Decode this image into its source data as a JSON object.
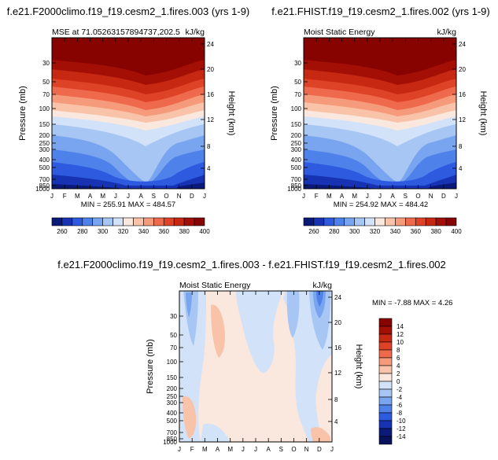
{
  "chart_data": [
    {
      "type": "heatmap",
      "title": "f.e21.F2000climo.f19_f19.cesm2_1.fires.003 (yrs 1-9)",
      "subtitle_left": "MSE at 71.05263157894737,202.5",
      "subtitle_right": "kJ/kg",
      "ylabel": "Pressure (mb)",
      "ylabel_right": "Height (km)",
      "x_ticks": [
        "J",
        "F",
        "M",
        "A",
        "M",
        "J",
        "J",
        "A",
        "S",
        "O",
        "N",
        "D",
        "J"
      ],
      "y_ticks": [
        "30",
        "50",
        "70",
        "100",
        "150",
        "200",
        "250",
        "300",
        "400",
        "500",
        "700",
        "850",
        "1000"
      ],
      "y_ticks_right": [
        "24",
        "20",
        "16",
        "12",
        "8",
        "4"
      ],
      "stats": "MIN = 255.91  MAX = 484.57",
      "colorbar_labels": [
        "260",
        "280",
        "300",
        "320",
        "340",
        "360",
        "380",
        "400"
      ],
      "colorbar_colors": [
        "#0a1a78",
        "#1733b4",
        "#2e5ae0",
        "#4f81ea",
        "#79a5f0",
        "#a7c6f4",
        "#d2e2f9",
        "#fae7dd",
        "#f8c3a8",
        "#f59a7a",
        "#ef6a4c",
        "#de4227",
        "#c62812",
        "#a30f05",
        "#870300"
      ],
      "value_range": [
        255.91,
        484.57
      ]
    },
    {
      "type": "heatmap",
      "title": "f.e21.FHIST.f19_f19.cesm2_1.fires.002 (yrs 1-9)",
      "subtitle_left": "Moist Static Energy",
      "subtitle_right": "kJ/kg",
      "ylabel": "Pressure (mb)",
      "ylabel_right": "Height (km)",
      "x_ticks": [
        "J",
        "F",
        "M",
        "A",
        "M",
        "J",
        "J",
        "A",
        "S",
        "O",
        "N",
        "D",
        "J"
      ],
      "y_ticks": [
        "30",
        "50",
        "70",
        "100",
        "150",
        "200",
        "250",
        "300",
        "400",
        "500",
        "700",
        "850",
        "1000"
      ],
      "y_ticks_right": [
        "24",
        "20",
        "16",
        "12",
        "8",
        "4"
      ],
      "stats": "MIN = 254.92  MAX = 484.42",
      "colorbar_labels": [
        "260",
        "280",
        "300",
        "320",
        "340",
        "360",
        "380",
        "400"
      ],
      "colorbar_colors": [
        "#0a1a78",
        "#1733b4",
        "#2e5ae0",
        "#4f81ea",
        "#79a5f0",
        "#a7c6f4",
        "#d2e2f9",
        "#fae7dd",
        "#f8c3a8",
        "#f59a7a",
        "#ef6a4c",
        "#de4227",
        "#c62812",
        "#a30f05",
        "#870300"
      ],
      "value_range": [
        254.92,
        484.42
      ]
    },
    {
      "type": "heatmap",
      "title": "f.e21.F2000climo.f19_f19.cesm2_1.fires.003 - f.e21.FHIST.f19_f19.cesm2_1.fires.002",
      "subtitle_left": "Moist Static Energy",
      "subtitle_right": "kJ/kg",
      "ylabel": "Pressure (mb)",
      "ylabel_right": "Height (km)",
      "x_ticks": [
        "J",
        "F",
        "M",
        "A",
        "M",
        "J",
        "J",
        "A",
        "S",
        "O",
        "N",
        "D",
        "J"
      ],
      "y_ticks": [
        "30",
        "50",
        "70",
        "100",
        "150",
        "200",
        "250",
        "300",
        "400",
        "500",
        "700",
        "850",
        "1000"
      ],
      "y_ticks_right": [
        "24",
        "20",
        "16",
        "12",
        "8",
        "4"
      ],
      "stats": "MIN = -7.88  MAX =  4.26",
      "colorbar_labels": [
        "14",
        "12",
        "10",
        "8",
        "6",
        "4",
        "2",
        "0",
        "-2",
        "-4",
        "-6",
        "-8",
        "-10",
        "-12",
        "-14"
      ],
      "colorbar_colors": [
        "#870300",
        "#a30f05",
        "#c62812",
        "#de4227",
        "#ef6a4c",
        "#f59a7a",
        "#f8c3a8",
        "#fae7dd",
        "#d2e2f9",
        "#a7c6f4",
        "#79a5f0",
        "#4f81ea",
        "#2e5ae0",
        "#1733b4",
        "#0a1a78",
        "#08125a"
      ],
      "value_range": [
        -7.88,
        4.26
      ]
    }
  ]
}
